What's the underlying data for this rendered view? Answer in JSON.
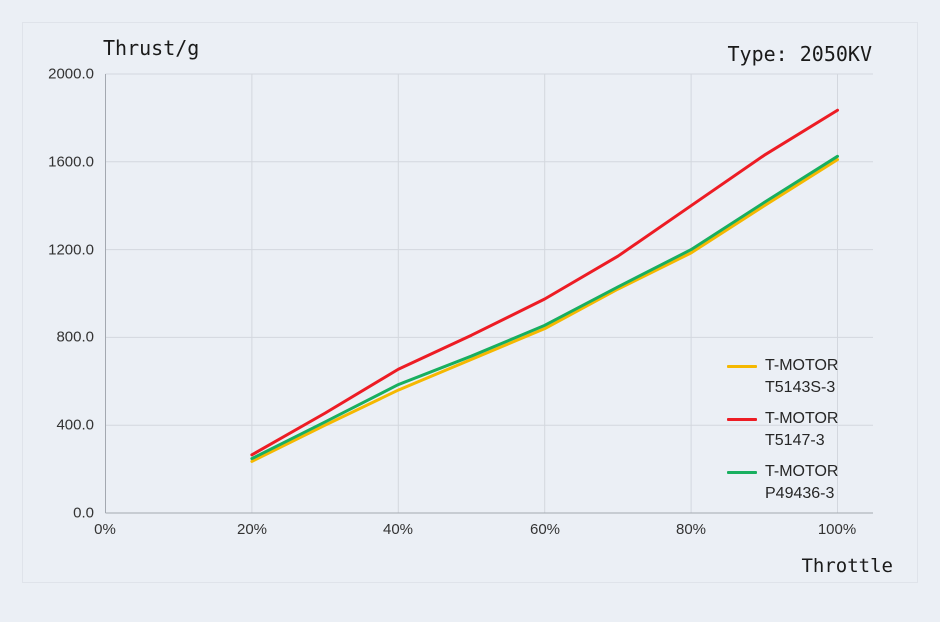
{
  "header": {
    "chart_title": "Thrust/g",
    "type_label": "Type: 2050KV"
  },
  "axes": {
    "x_label": "Throttle",
    "y_ticks": [
      "2000.0",
      "1600.0",
      "1200.0",
      "800.0",
      "400.0",
      "0.0"
    ],
    "x_ticks": [
      "0%",
      "20%",
      "40%",
      "60%",
      "80%",
      "100%"
    ]
  },
  "legend": {
    "items": [
      {
        "line1": "T-MOTOR",
        "line2": "T5143S-3",
        "color": "#F5B800"
      },
      {
        "line1": "T-MOTOR",
        "line2": "T5147-3",
        "color": "#ED1C24"
      },
      {
        "line1": "T-MOTOR",
        "line2": "P49436-3",
        "color": "#18AF5F"
      }
    ]
  },
  "chart_data": {
    "type": "line",
    "title": "Thrust/g",
    "xlabel": "Throttle",
    "ylabel": "Thrust/g",
    "x": [
      20,
      30,
      40,
      50,
      60,
      70,
      80,
      90,
      100
    ],
    "x_tick_labels": [
      "0%",
      "20%",
      "40%",
      "60%",
      "80%",
      "100%"
    ],
    "xlim": [
      0,
      100
    ],
    "ylim": [
      0,
      2000
    ],
    "y_tick_step": 400,
    "grid": true,
    "legend_position": "right-middle",
    "annotation": "Type: 2050KV",
    "series": [
      {
        "name": "T-MOTOR T5143S-3",
        "color": "#F5B800",
        "values": [
          235,
          400,
          560,
          700,
          840,
          1020,
          1185,
          1400,
          1610
        ]
      },
      {
        "name": "T-MOTOR P49436-3",
        "color": "#18AF5F",
        "values": [
          248,
          415,
          585,
          715,
          855,
          1030,
          1200,
          1415,
          1625
        ]
      },
      {
        "name": "T-MOTOR T5147-3",
        "color": "#ED1C24",
        "values": [
          265,
          455,
          655,
          810,
          975,
          1170,
          1400,
          1630,
          1835
        ]
      }
    ],
    "colors": {
      "background": "#EBEFF5",
      "gridline": "#D3D7DE",
      "axis": "#A3A8B0",
      "text": "#1A1A1A"
    }
  }
}
